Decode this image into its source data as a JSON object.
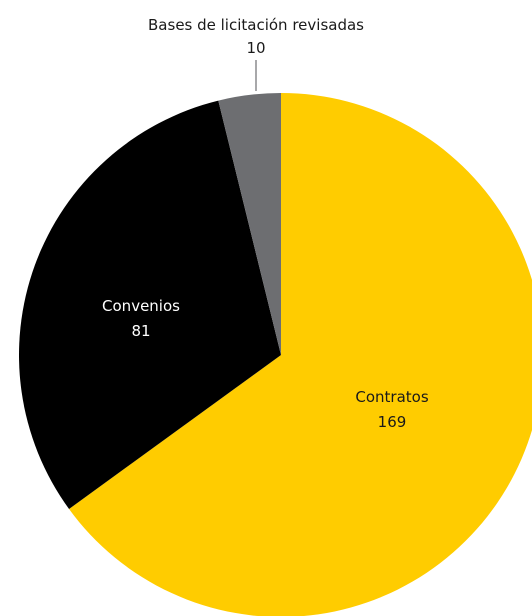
{
  "chart_data": {
    "type": "pie",
    "start_angle_deg": 0,
    "direction": "clockwise",
    "slices": [
      {
        "label": "Contratos",
        "value": 169,
        "color": "#ffcc00",
        "label_color": "#1a1a1a"
      },
      {
        "label": "Convenios",
        "value": 81,
        "color": "#000000",
        "label_color": "#ffffff"
      },
      {
        "label": "Bases de licitación revisadas",
        "value": 10,
        "color": "#6d6e71",
        "label_color": "#1a1a1a"
      }
    ]
  }
}
